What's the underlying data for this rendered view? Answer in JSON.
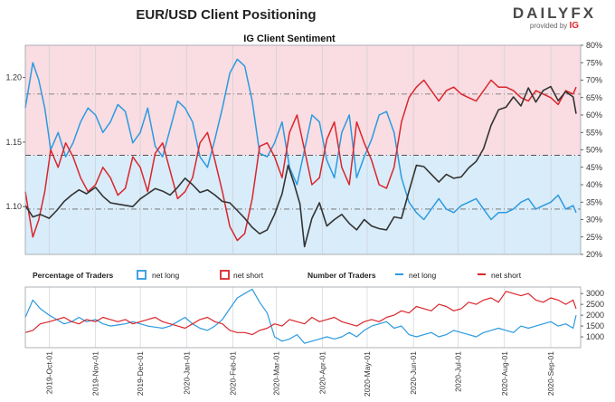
{
  "title": "EUR/USD Client Positioning",
  "brand": {
    "name": "DAILYFX",
    "provided_by": "provided by",
    "provider": "IG"
  },
  "colors": {
    "net_long": "#2c9ae0",
    "net_short": "#d9262c",
    "price": "#333333",
    "long_fill": "#d9ecf9",
    "short_fill": "#f9dde2",
    "background": "#ffffff"
  },
  "chart_data": [
    {
      "type": "line",
      "title": "IG Client Sentiment",
      "x_ticks": [
        "2019-Oct-01",
        "2019-Nov-01",
        "2019-Dec-01",
        "2020-Jan-01",
        "2020-Feb-01",
        "2020-Mar-01",
        "2020-Apr-01",
        "2020-May-01",
        "2020-Jun-01",
        "2020-Jul-01",
        "2020-Aug-01",
        "2020-Sep-01"
      ],
      "y_left_ticks": [
        "1.10",
        "1.15",
        "1.20"
      ],
      "y_left_range": [
        1.063,
        1.225
      ],
      "y_right_ticks": [
        "20%",
        "25%",
        "30%",
        "35%",
        "40%",
        "45%",
        "50%",
        "55%",
        "60%",
        "65%",
        "70%",
        "75%",
        "80%"
      ],
      "y_right_range": [
        20,
        80
      ],
      "reference_lines": {
        "price": [
          1.1398
        ],
        "percent": [
          66,
          33
        ]
      },
      "series": [
        {
          "name": "net long",
          "unit": "%",
          "x": [
            "2019-Sep-15",
            "2019-Sep-20",
            "2019-Sep-24",
            "2019-Sep-28",
            "2019-Oct-02",
            "2019-Oct-07",
            "2019-Oct-12",
            "2019-Oct-17",
            "2019-Oct-22",
            "2019-Oct-27",
            "2019-Nov-01",
            "2019-Nov-06",
            "2019-Nov-11",
            "2019-Nov-16",
            "2019-Nov-21",
            "2019-Nov-26",
            "2019-Dec-01",
            "2019-Dec-06",
            "2019-Dec-11",
            "2019-Dec-16",
            "2019-Dec-21",
            "2019-Dec-26",
            "2019-Dec-31",
            "2020-Jan-05",
            "2020-Jan-10",
            "2020-Jan-15",
            "2020-Jan-20",
            "2020-Jan-25",
            "2020-Jan-30",
            "2020-Feb-04",
            "2020-Feb-09",
            "2020-Feb-14",
            "2020-Feb-19",
            "2020-Feb-24",
            "2020-Feb-29",
            "2020-Mar-05",
            "2020-Mar-10",
            "2020-Mar-15",
            "2020-Mar-20",
            "2020-Mar-25",
            "2020-Mar-30",
            "2020-Apr-04",
            "2020-Apr-09",
            "2020-Apr-14",
            "2020-Apr-19",
            "2020-Apr-24",
            "2020-Apr-29",
            "2020-May-04",
            "2020-May-09",
            "2020-May-14",
            "2020-May-19",
            "2020-May-24",
            "2020-May-29",
            "2020-Jun-03",
            "2020-Jun-08",
            "2020-Jun-13",
            "2020-Jun-18",
            "2020-Jun-23",
            "2020-Jun-28",
            "2020-Jul-03",
            "2020-Jul-08",
            "2020-Jul-13",
            "2020-Jul-18",
            "2020-Jul-23",
            "2020-Jul-28",
            "2020-Aug-02",
            "2020-Aug-07",
            "2020-Aug-12",
            "2020-Aug-17",
            "2020-Aug-22",
            "2020-Aug-27",
            "2020-Sep-01",
            "2020-Sep-06",
            "2020-Sep-11",
            "2020-Sep-16",
            "2020-Sep-18"
          ],
          "values": [
            62,
            75,
            70,
            62,
            50,
            55,
            48,
            52,
            58,
            62,
            60,
            55,
            58,
            63,
            61,
            52,
            55,
            62,
            51,
            48,
            56,
            64,
            62,
            58,
            48,
            45,
            53,
            62,
            72,
            76,
            74,
            64,
            49,
            48,
            52,
            58,
            45,
            40,
            50,
            60,
            58,
            47,
            42,
            55,
            60,
            42,
            48,
            53,
            60,
            61,
            55,
            42,
            35,
            32,
            30,
            33,
            36,
            33,
            32,
            34,
            35,
            36,
            33,
            30,
            32,
            32,
            33,
            35,
            36,
            33,
            34,
            35,
            37,
            33,
            34,
            32
          ]
        },
        {
          "name": "net short",
          "unit": "%",
          "x": [
            "2019-Sep-15",
            "2019-Sep-20",
            "2019-Sep-24",
            "2019-Sep-28",
            "2019-Oct-02",
            "2019-Oct-07",
            "2019-Oct-12",
            "2019-Oct-17",
            "2019-Oct-22",
            "2019-Oct-27",
            "2019-Nov-01",
            "2019-Nov-06",
            "2019-Nov-11",
            "2019-Nov-16",
            "2019-Nov-21",
            "2019-Nov-26",
            "2019-Dec-01",
            "2019-Dec-06",
            "2019-Dec-11",
            "2019-Dec-16",
            "2019-Dec-21",
            "2019-Dec-26",
            "2019-Dec-31",
            "2020-Jan-05",
            "2020-Jan-10",
            "2020-Jan-15",
            "2020-Jan-20",
            "2020-Jan-25",
            "2020-Jan-30",
            "2020-Feb-04",
            "2020-Feb-09",
            "2020-Feb-14",
            "2020-Feb-19",
            "2020-Feb-24",
            "2020-Feb-29",
            "2020-Mar-05",
            "2020-Mar-10",
            "2020-Mar-15",
            "2020-Mar-20",
            "2020-Mar-25",
            "2020-Mar-30",
            "2020-Apr-04",
            "2020-Apr-09",
            "2020-Apr-14",
            "2020-Apr-19",
            "2020-Apr-24",
            "2020-Apr-29",
            "2020-May-04",
            "2020-May-09",
            "2020-May-14",
            "2020-May-19",
            "2020-May-24",
            "2020-May-29",
            "2020-Jun-03",
            "2020-Jun-08",
            "2020-Jun-13",
            "2020-Jun-18",
            "2020-Jun-23",
            "2020-Jun-28",
            "2020-Jul-03",
            "2020-Jul-08",
            "2020-Jul-13",
            "2020-Jul-18",
            "2020-Jul-23",
            "2020-Jul-28",
            "2020-Aug-02",
            "2020-Aug-07",
            "2020-Aug-12",
            "2020-Aug-17",
            "2020-Aug-22",
            "2020-Aug-27",
            "2020-Sep-01",
            "2020-Sep-06",
            "2020-Sep-11",
            "2020-Sep-16",
            "2020-Sep-18"
          ],
          "values": [
            38,
            25,
            30,
            38,
            50,
            45,
            52,
            48,
            42,
            38,
            40,
            45,
            42,
            37,
            39,
            48,
            45,
            38,
            49,
            52,
            44,
            36,
            38,
            42,
            52,
            55,
            47,
            38,
            28,
            24,
            26,
            36,
            51,
            52,
            48,
            42,
            55,
            60,
            50,
            40,
            42,
            53,
            58,
            45,
            40,
            58,
            52,
            47,
            40,
            39,
            45,
            58,
            65,
            68,
            70,
            67,
            64,
            67,
            68,
            66,
            65,
            64,
            67,
            70,
            68,
            68,
            67,
            65,
            64,
            67,
            66,
            65,
            63,
            67,
            66,
            68
          ]
        },
        {
          "name": "EUR/USD",
          "unit": "price",
          "x": [
            "2019-Sep-15",
            "2019-Sep-20",
            "2019-Sep-25",
            "2019-Oct-01",
            "2019-Oct-06",
            "2019-Oct-11",
            "2019-Oct-16",
            "2019-Oct-21",
            "2019-Oct-26",
            "2019-Nov-01",
            "2019-Nov-06",
            "2019-Nov-11",
            "2019-Nov-16",
            "2019-Nov-21",
            "2019-Nov-26",
            "2019-Dec-01",
            "2019-Dec-06",
            "2019-Dec-11",
            "2019-Dec-16",
            "2019-Dec-21",
            "2019-Dec-26",
            "2019-Dec-31",
            "2020-Jan-05",
            "2020-Jan-10",
            "2020-Jan-15",
            "2020-Jan-20",
            "2020-Jan-25",
            "2020-Jan-30",
            "2020-Feb-04",
            "2020-Feb-09",
            "2020-Feb-14",
            "2020-Feb-19",
            "2020-Feb-24",
            "2020-Feb-29",
            "2020-Mar-05",
            "2020-Mar-09",
            "2020-Mar-13",
            "2020-Mar-17",
            "2020-Mar-20",
            "2020-Mar-25",
            "2020-Mar-30",
            "2020-Apr-04",
            "2020-Apr-09",
            "2020-Apr-14",
            "2020-Apr-19",
            "2020-Apr-24",
            "2020-Apr-29",
            "2020-May-04",
            "2020-May-09",
            "2020-May-14",
            "2020-May-19",
            "2020-May-24",
            "2020-May-29",
            "2020-Jun-03",
            "2020-Jun-08",
            "2020-Jun-13",
            "2020-Jun-18",
            "2020-Jun-23",
            "2020-Jun-28",
            "2020-Jul-03",
            "2020-Jul-08",
            "2020-Jul-13",
            "2020-Jul-18",
            "2020-Jul-23",
            "2020-Jul-28",
            "2020-Aug-02",
            "2020-Aug-07",
            "2020-Aug-12",
            "2020-Aug-17",
            "2020-Aug-22",
            "2020-Aug-27",
            "2020-Sep-01",
            "2020-Sep-06",
            "2020-Sep-11",
            "2020-Sep-16",
            "2020-Sep-18"
          ],
          "values": [
            1.101,
            1.092,
            1.094,
            1.091,
            1.097,
            1.104,
            1.109,
            1.113,
            1.11,
            1.115,
            1.108,
            1.103,
            1.102,
            1.101,
            1.1,
            1.106,
            1.11,
            1.114,
            1.112,
            1.109,
            1.115,
            1.122,
            1.117,
            1.111,
            1.113,
            1.109,
            1.104,
            1.103,
            1.097,
            1.091,
            1.084,
            1.079,
            1.082,
            1.094,
            1.11,
            1.132,
            1.118,
            1.102,
            1.069,
            1.091,
            1.103,
            1.085,
            1.09,
            1.094,
            1.087,
            1.082,
            1.09,
            1.085,
            1.083,
            1.082,
            1.092,
            1.091,
            1.112,
            1.132,
            1.131,
            1.125,
            1.119,
            1.125,
            1.122,
            1.123,
            1.13,
            1.135,
            1.145,
            1.163,
            1.175,
            1.177,
            1.185,
            1.178,
            1.192,
            1.181,
            1.19,
            1.193,
            1.182,
            1.189,
            1.185,
            1.172
          ]
        }
      ]
    },
    {
      "type": "line",
      "x_ticks": [
        "2019-Oct-01",
        "2019-Nov-01",
        "2019-Dec-01",
        "2020-Jan-01",
        "2020-Feb-01",
        "2020-Mar-01",
        "2020-Apr-01",
        "2020-May-01",
        "2020-Jun-01",
        "2020-Jul-01",
        "2020-Aug-01",
        "2020-Sep-01"
      ],
      "y_right_ticks": [
        "1000",
        "1500",
        "2000",
        "2500",
        "3000"
      ],
      "y_range": [
        500,
        3300
      ],
      "legend": {
        "pct_title": "Percentage of Traders",
        "num_title": "Number of Traders",
        "net_long": "net long",
        "net_short": "net short"
      },
      "series": [
        {
          "name": "net long",
          "unit": "traders",
          "x": [
            "2019-Sep-15",
            "2019-Sep-20",
            "2019-Sep-25",
            "2019-Oct-01",
            "2019-Oct-06",
            "2019-Oct-11",
            "2019-Oct-16",
            "2019-Oct-21",
            "2019-Oct-26",
            "2019-Nov-01",
            "2019-Nov-06",
            "2019-Nov-11",
            "2019-Nov-16",
            "2019-Nov-21",
            "2019-Nov-26",
            "2019-Dec-01",
            "2019-Dec-06",
            "2019-Dec-11",
            "2019-Dec-16",
            "2019-Dec-21",
            "2019-Dec-26",
            "2019-Dec-31",
            "2020-Jan-05",
            "2020-Jan-10",
            "2020-Jan-15",
            "2020-Jan-20",
            "2020-Jan-25",
            "2020-Jan-30",
            "2020-Feb-04",
            "2020-Feb-09",
            "2020-Feb-14",
            "2020-Feb-19",
            "2020-Feb-24",
            "2020-Feb-29",
            "2020-Mar-05",
            "2020-Mar-10",
            "2020-Mar-15",
            "2020-Mar-20",
            "2020-Mar-25",
            "2020-Mar-30",
            "2020-Apr-04",
            "2020-Apr-09",
            "2020-Apr-14",
            "2020-Apr-19",
            "2020-Apr-24",
            "2020-Apr-29",
            "2020-May-04",
            "2020-May-09",
            "2020-May-14",
            "2020-May-19",
            "2020-May-24",
            "2020-May-29",
            "2020-Jun-03",
            "2020-Jun-08",
            "2020-Jun-13",
            "2020-Jun-18",
            "2020-Jun-23",
            "2020-Jun-28",
            "2020-Jul-03",
            "2020-Jul-08",
            "2020-Jul-13",
            "2020-Jul-18",
            "2020-Jul-23",
            "2020-Jul-28",
            "2020-Aug-02",
            "2020-Aug-07",
            "2020-Aug-12",
            "2020-Aug-17",
            "2020-Aug-22",
            "2020-Aug-27",
            "2020-Sep-01",
            "2020-Sep-06",
            "2020-Sep-11",
            "2020-Sep-16",
            "2020-Sep-18"
          ],
          "values": [
            1900,
            2700,
            2300,
            2000,
            1800,
            1600,
            1700,
            1900,
            1700,
            1800,
            1600,
            1500,
            1550,
            1600,
            1700,
            1600,
            1500,
            1450,
            1400,
            1500,
            1700,
            1900,
            1600,
            1400,
            1300,
            1500,
            1800,
            2300,
            2800,
            3000,
            3200,
            2600,
            2100,
            1000,
            800,
            900,
            1100,
            700,
            800,
            900,
            1000,
            900,
            1000,
            1200,
            1000,
            1300,
            1500,
            1600,
            1700,
            1400,
            1500,
            1100,
            1000,
            1100,
            1200,
            1000,
            1100,
            1300,
            1200,
            1100,
            1000,
            1200,
            1300,
            1400,
            1300,
            1200,
            1500,
            1400,
            1500,
            1600,
            1700,
            1500,
            1600,
            1400,
            2000
          ]
        },
        {
          "name": "net short",
          "unit": "traders",
          "x": [
            "2019-Sep-15",
            "2019-Sep-20",
            "2019-Sep-25",
            "2019-Oct-01",
            "2019-Oct-06",
            "2019-Oct-11",
            "2019-Oct-16",
            "2019-Oct-21",
            "2019-Oct-26",
            "2019-Nov-01",
            "2019-Nov-06",
            "2019-Nov-11",
            "2019-Nov-16",
            "2019-Nov-21",
            "2019-Nov-26",
            "2019-Dec-01",
            "2019-Dec-06",
            "2019-Dec-11",
            "2019-Dec-16",
            "2019-Dec-21",
            "2019-Dec-26",
            "2019-Dec-31",
            "2020-Jan-05",
            "2020-Jan-10",
            "2020-Jan-15",
            "2020-Jan-20",
            "2020-Jan-25",
            "2020-Jan-30",
            "2020-Feb-04",
            "2020-Feb-09",
            "2020-Feb-14",
            "2020-Feb-19",
            "2020-Feb-24",
            "2020-Feb-29",
            "2020-Mar-05",
            "2020-Mar-10",
            "2020-Mar-15",
            "2020-Mar-20",
            "2020-Mar-25",
            "2020-Mar-30",
            "2020-Apr-04",
            "2020-Apr-09",
            "2020-Apr-14",
            "2020-Apr-19",
            "2020-Apr-24",
            "2020-Apr-29",
            "2020-May-04",
            "2020-May-09",
            "2020-May-14",
            "2020-May-19",
            "2020-May-24",
            "2020-May-29",
            "2020-Jun-03",
            "2020-Jun-08",
            "2020-Jun-13",
            "2020-Jun-18",
            "2020-Jun-23",
            "2020-Jun-28",
            "2020-Jul-03",
            "2020-Jul-08",
            "2020-Jul-13",
            "2020-Jul-18",
            "2020-Jul-23",
            "2020-Jul-28",
            "2020-Aug-02",
            "2020-Aug-07",
            "2020-Aug-12",
            "2020-Aug-17",
            "2020-Aug-22",
            "2020-Aug-27",
            "2020-Sep-01",
            "2020-Sep-06",
            "2020-Sep-11",
            "2020-Sep-16",
            "2020-Sep-18"
          ],
          "values": [
            1200,
            1300,
            1600,
            1700,
            1800,
            1900,
            1700,
            1600,
            1800,
            1700,
            1900,
            1800,
            1700,
            1800,
            1600,
            1700,
            1800,
            1900,
            1700,
            1600,
            1500,
            1400,
            1600,
            1800,
            1900,
            1700,
            1600,
            1300,
            1200,
            1200,
            1100,
            1300,
            1400,
            1600,
            1500,
            1800,
            1700,
            1600,
            1900,
            1700,
            1800,
            1900,
            1700,
            1600,
            1500,
            1700,
            1800,
            1700,
            1900,
            2000,
            2200,
            2100,
            2400,
            2300,
            2200,
            2500,
            2400,
            2200,
            2300,
            2600,
            2500,
            2700,
            2800,
            2600,
            3100,
            3000,
            2900,
            3000,
            2700,
            2600,
            2800,
            2700,
            2500,
            2700,
            2300
          ]
        }
      ]
    }
  ]
}
